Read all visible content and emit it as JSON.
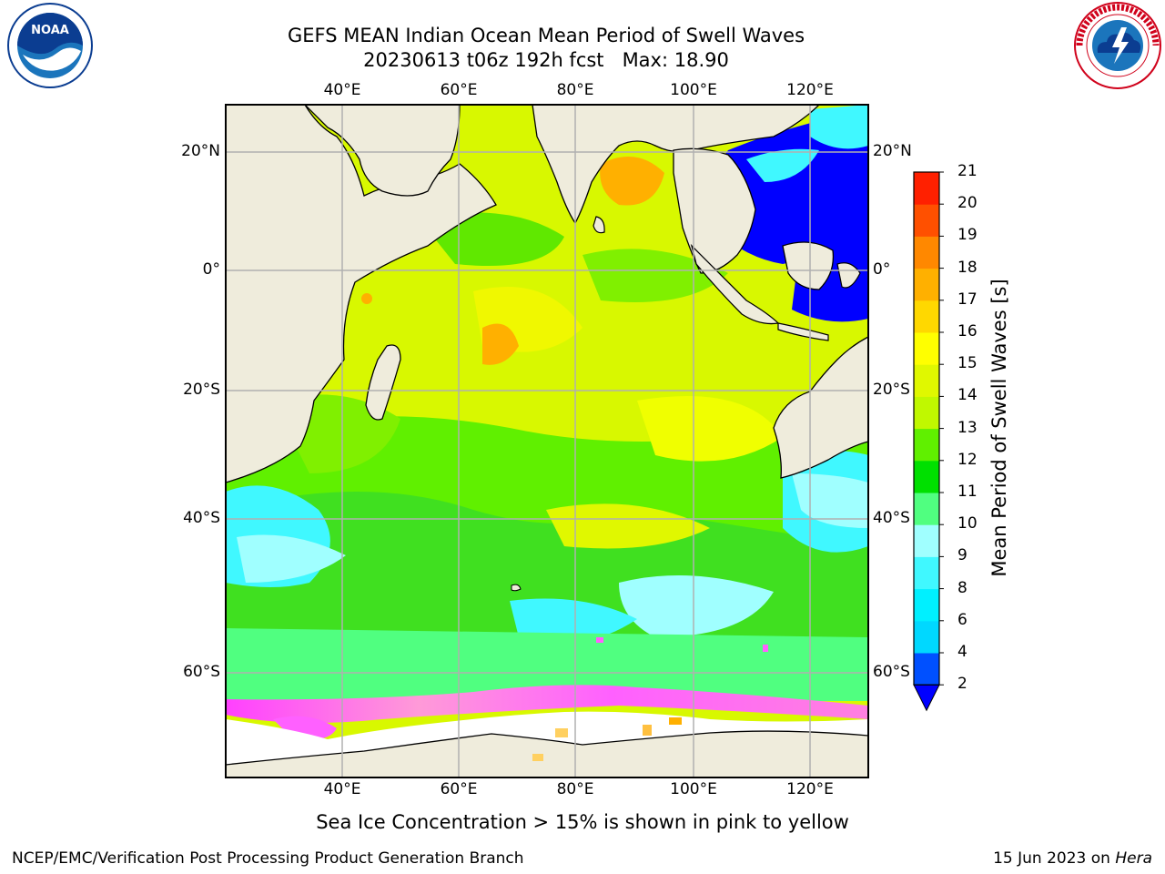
{
  "header": {
    "title_line1": "GEFS MEAN Indian Ocean Mean Period of Swell Waves",
    "title_line2": "20230613 t06z 192h fcst   Max: 18.90"
  },
  "logos": {
    "left": {
      "name": "noaa-logo",
      "text": "NOAA",
      "ring_text": "NATIONAL OCEANIC AND ATMOSPHERIC ADMINISTRATION · U.S. DEPARTMENT OF COMMERCE"
    },
    "right": {
      "name": "nws-logo",
      "ring_text": "NATIONAL WEATHER SERVICE"
    }
  },
  "map": {
    "lon_ticks": [
      "40°E",
      "60°E",
      "80°E",
      "100°E",
      "120°E"
    ],
    "lat_ticks_left": [
      "20°N",
      "0°",
      "20°S",
      "40°S",
      "60°S"
    ],
    "lat_ticks_right": [
      "20°N",
      "0°",
      "20°S",
      "40°S",
      "60°S"
    ],
    "land_color": "#efecdc",
    "grid_color": "#b0b0b0"
  },
  "colorbar": {
    "label": "Mean Period of Swell Waves [s]",
    "ticks": [
      "2",
      "4",
      "6",
      "8",
      "9",
      "10",
      "11",
      "12",
      "13",
      "14",
      "15",
      "16",
      "17",
      "18",
      "19",
      "20",
      "21"
    ],
    "colors": [
      "#0050ff",
      "#00d8ff",
      "#00f0ff",
      "#40f8ff",
      "#a0ffff",
      "#50ff80",
      "#00e000",
      "#60f000",
      "#c0f800",
      "#e0f800",
      "#ffff00",
      "#ffd800",
      "#ffb000",
      "#ff8800",
      "#ff5000",
      "#ff2000"
    ],
    "extend_color": "#0000ff"
  },
  "note": "Sea Ice Concentration > 15% is shown in pink to yellow",
  "footer": {
    "left": "NCEP/EMC/Verification Post Processing Product Generation Branch",
    "date": "15 Jun 2023 on ",
    "machine": "Hera"
  }
}
